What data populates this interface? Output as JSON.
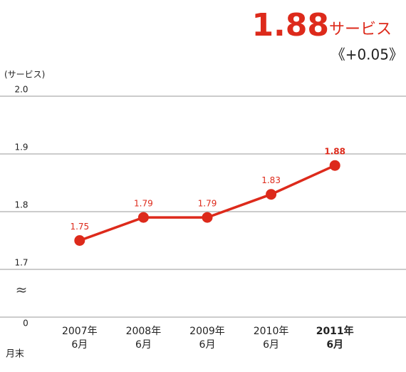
{
  "chart_data": {
    "type": "line",
    "headline_value": 1.88,
    "headline_unit": "サービス",
    "change": "《+0.05》",
    "y_axis_label": "(サービス)",
    "x_axis_label": "月末",
    "categories": [
      [
        "2007年",
        "6月"
      ],
      [
        "2008年",
        "6月"
      ],
      [
        "2009年",
        "6月"
      ],
      [
        "2010年",
        "6月"
      ],
      [
        "2011年",
        "6月"
      ]
    ],
    "series": [
      {
        "name": null,
        "color": "#dd2a1b",
        "values": [
          1.75,
          1.79,
          1.79,
          1.83,
          1.88
        ]
      }
    ],
    "ylim": [
      1.7,
      2.0
    ],
    "yticks": [
      {
        "value": 2,
        "label": "2.0"
      },
      1.9,
      1.8,
      1.7
    ],
    "baseline_tick": 0,
    "axis_break_symbol": "≈",
    "grid": true
  }
}
